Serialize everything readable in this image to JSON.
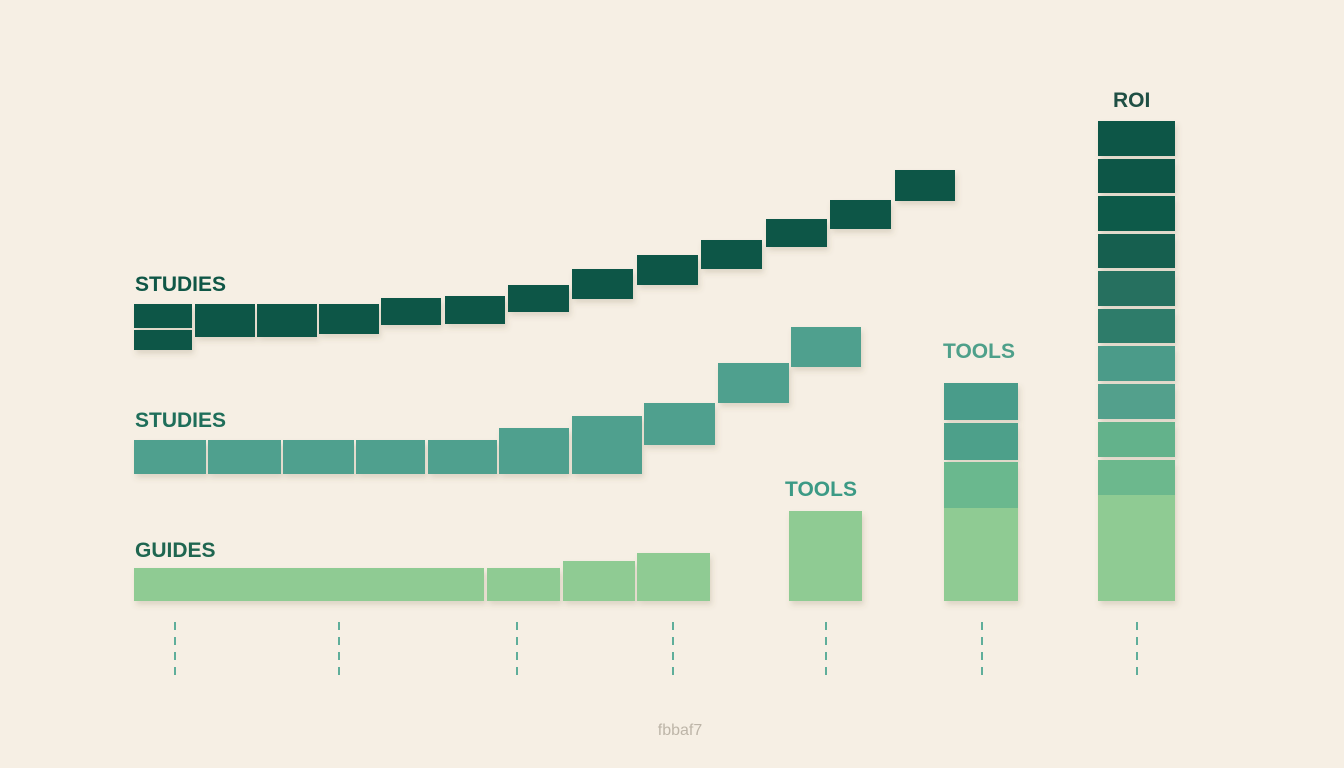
{
  "labels": [
    "STUDIES",
    "STUDIES",
    "GUIDES",
    "TOOLS",
    "TOOLS",
    "ROI"
  ],
  "footer": "fbbaf7"
}
